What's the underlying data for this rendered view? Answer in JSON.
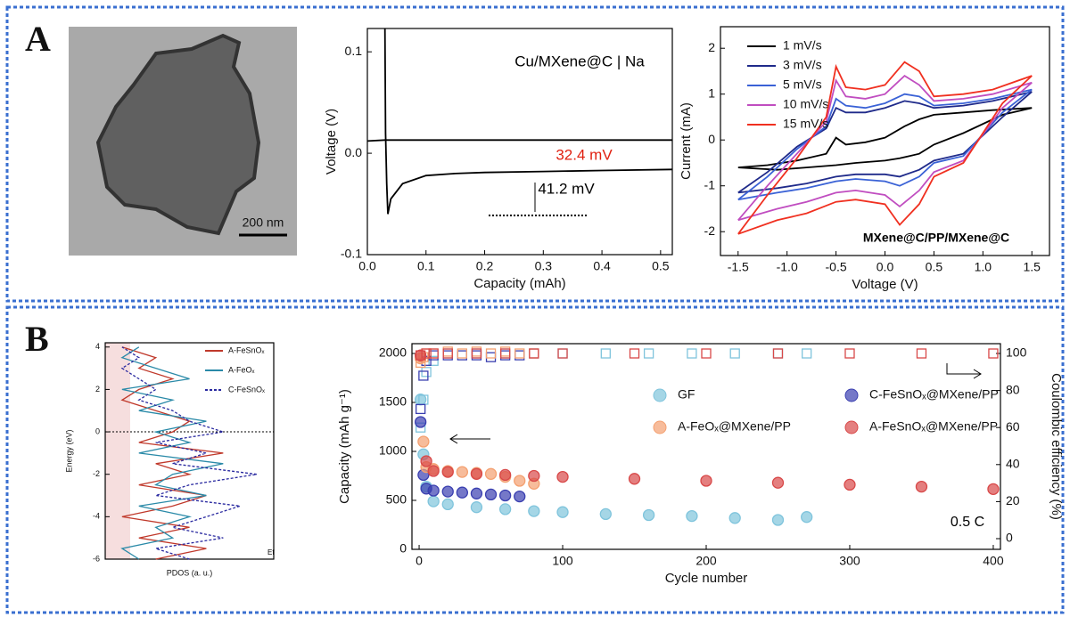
{
  "panels": [
    "A",
    "B"
  ],
  "image": {
    "scale_bar": "200 nm"
  },
  "chart_data": [
    {
      "type": "line",
      "xlabel": "Capacity (mAh)",
      "ylabel": "Voltage (V)",
      "annotations": [
        "Cu/MXene@C | Na",
        "32.4 mV",
        "41.2 mV"
      ],
      "xlim": [
        0,
        0.52
      ],
      "ylim": [
        -0.1,
        0.123
      ],
      "xticks": [
        {
          "value": 0,
          "label": "0.0"
        },
        0.1,
        0.2,
        0.3,
        0.4,
        0.5
      ],
      "yticks": [
        -0.1,
        {
          "value": 0,
          "label": "0.0"
        },
        0.1
      ],
      "series": [
        {
          "color": "#000000",
          "x": [
            0.03,
            0.031,
            0.033,
            0.035,
            0.04,
            0.06,
            0.1,
            0.15,
            0.2,
            0.3,
            0.4,
            0.52
          ],
          "values": [
            0.123,
            0.02,
            -0.03,
            -0.06,
            -0.045,
            -0.03,
            -0.022,
            -0.02,
            -0.019,
            -0.018,
            -0.017,
            -0.016
          ]
        },
        {
          "color": "#000000",
          "x": [
            0,
            0.03,
            0.1,
            0.2,
            0.3,
            0.4,
            0.52
          ],
          "values": [
            0.012,
            0.013,
            0.013,
            0.013,
            0.013,
            0.013,
            0.013
          ]
        }
      ]
    },
    {
      "type": "line",
      "xlabel": "Voltage (V)",
      "ylabel": "Current (mA)",
      "annotations": [
        "MXene@C/PP/MXene@C"
      ],
      "xlim": [
        -1.68,
        1.68
      ],
      "ylim": [
        -2.52,
        2.47
      ],
      "xticks": [
        -1.5,
        {
          "value": -1,
          "label": "-1.0"
        },
        -0.5,
        {
          "value": 0,
          "label": "0.0"
        },
        0.5,
        {
          "value": 1,
          "label": "1.0"
        },
        1.5
      ],
      "yticks": [
        -2,
        -1,
        0,
        1,
        2
      ],
      "x": [
        -1.5,
        -1.2,
        -0.9,
        -0.6,
        -0.5,
        -0.4,
        -0.2,
        0,
        0.2,
        0.35,
        0.5,
        0.8,
        1.1,
        1.5,
        1.2,
        0.8,
        0.5,
        0.35,
        0.15,
        0,
        -0.3,
        -0.5,
        -0.8,
        -1.1,
        -1.5
      ],
      "series": [
        {
          "name": "1 mV/s",
          "color": "#000000",
          "values": [
            -0.6,
            -0.55,
            -0.45,
            -0.3,
            0.05,
            -0.1,
            -0.05,
            0.05,
            0.3,
            0.45,
            0.55,
            0.6,
            0.65,
            0.7,
            0.55,
            0.15,
            -0.1,
            -0.3,
            -0.4,
            -0.45,
            -0.5,
            -0.55,
            -0.6,
            -0.65,
            -0.6
          ]
        },
        {
          "name": "3 mV/s",
          "color": "#1f2a8a",
          "values": [
            -1.15,
            -0.7,
            -0.15,
            0.25,
            0.7,
            0.6,
            0.6,
            0.7,
            0.85,
            0.8,
            0.7,
            0.75,
            0.85,
            1.05,
            0.5,
            -0.3,
            -0.45,
            -0.65,
            -0.8,
            -0.75,
            -0.75,
            -0.8,
            -0.95,
            -1.05,
            -1.15
          ]
        },
        {
          "name": "5 mV/s",
          "color": "#3a62d6",
          "values": [
            -1.3,
            -0.8,
            -0.2,
            0.3,
            0.9,
            0.75,
            0.7,
            0.8,
            1.0,
            0.95,
            0.75,
            0.8,
            0.9,
            1.1,
            0.6,
            -0.35,
            -0.5,
            -0.8,
            -1.0,
            -0.9,
            -0.85,
            -0.9,
            -1.05,
            -1.15,
            -1.3
          ]
        },
        {
          "name": "10 mV/s",
          "color": "#c04dc0",
          "values": [
            -1.75,
            -1.0,
            -0.3,
            0.4,
            1.3,
            0.95,
            0.9,
            1.0,
            1.4,
            1.2,
            0.85,
            0.9,
            1.0,
            1.25,
            0.7,
            -0.45,
            -0.7,
            -1.1,
            -1.45,
            -1.2,
            -1.1,
            -1.15,
            -1.35,
            -1.5,
            -1.75
          ]
        },
        {
          "name": "15 mV/s",
          "color": "#f03020",
          "values": [
            -2.05,
            -1.2,
            -0.4,
            0.5,
            1.6,
            1.15,
            1.1,
            1.2,
            1.7,
            1.5,
            0.95,
            1.0,
            1.1,
            1.4,
            0.8,
            -0.5,
            -0.8,
            -1.4,
            -1.85,
            -1.4,
            -1.3,
            -1.35,
            -1.6,
            -1.75,
            -2.05
          ]
        }
      ]
    },
    {
      "type": "line",
      "swap_axes": true,
      "xlabel": "PDOS (a. u.)",
      "ylabel": "Energy (eV)",
      "annotations": [
        "Ef"
      ],
      "xlim": [
        0,
        10
      ],
      "ylim": [
        -6,
        4.2
      ],
      "yticks": [
        -6,
        -4,
        -2,
        0,
        2,
        4
      ],
      "y": [
        -6,
        -5.5,
        -5,
        -4.5,
        -4,
        -3.5,
        -3,
        -2.5,
        -2,
        -1.5,
        -1,
        -0.5,
        0,
        0.5,
        1,
        1.5,
        2,
        2.5,
        3,
        3.5,
        4
      ],
      "series": [
        {
          "name": "A-FeSnOₓ",
          "color": "#c0392b",
          "values": [
            3,
            6,
            2,
            5,
            1,
            4,
            6,
            2,
            5,
            3,
            7,
            2,
            4,
            5,
            3,
            1,
            2,
            4,
            2,
            3,
            1
          ]
        },
        {
          "name": "A-FeOₓ",
          "color": "#2a8aa8",
          "values": [
            2,
            1,
            4,
            3,
            5,
            2,
            6,
            3,
            4,
            7,
            2,
            5,
            3,
            6,
            2,
            4,
            1,
            5,
            3,
            1,
            2
          ]
        },
        {
          "name": "C-FeSnOₓ",
          "color": "#2a2aa0",
          "dashed": true,
          "values": [
            5,
            3,
            7,
            4,
            6,
            8,
            3,
            5,
            9,
            4,
            6,
            3,
            7,
            5,
            4,
            2,
            3,
            2,
            1,
            2,
            1
          ]
        }
      ]
    },
    {
      "type": "scatter",
      "xlabel": "Cycle number",
      "ylabel": "Capacity (mAh g⁻¹)",
      "y2label": "Coulombic efficiency (%)",
      "annotations": [
        "0.5 C"
      ],
      "xlim": [
        -5,
        405
      ],
      "ylim": [
        0,
        2100
      ],
      "y2lim": [
        -5.77,
        105.29
      ],
      "xticks": [
        0,
        100,
        200,
        300,
        400
      ],
      "yticks": [
        0,
        500,
        1000,
        1500,
        2000
      ],
      "y2ticks": [
        0,
        20,
        40,
        60,
        80,
        100
      ],
      "series": [
        {
          "name": "GF",
          "color": "#7fc4dc",
          "x": [
            1,
            3,
            5,
            10,
            20,
            40,
            60,
            80,
            100,
            130,
            160,
            190,
            220,
            250,
            270
          ],
          "values": [
            1530,
            970,
            640,
            490,
            460,
            430,
            410,
            390,
            380,
            360,
            350,
            340,
            320,
            300,
            330
          ],
          "ce": [
            60,
            75,
            90,
            96,
            100,
            100,
            100,
            100,
            100,
            100,
            100,
            100,
            100,
            100,
            100
          ]
        },
        {
          "name": "C-FeSnOₓ@MXene/PP",
          "color": "#3a3fb0",
          "x": [
            1,
            3,
            5,
            10,
            20,
            30,
            40,
            50,
            60,
            70
          ],
          "values": [
            1300,
            760,
            620,
            600,
            590,
            580,
            570,
            560,
            550,
            540
          ],
          "ce": [
            70,
            88,
            96,
            99,
            99,
            99,
            99,
            98,
            99,
            99
          ]
        },
        {
          "name": "A-FeOₓ@MXene/PP",
          "color": "#f4a070",
          "x": [
            1,
            3,
            5,
            10,
            20,
            30,
            40,
            50,
            60,
            70,
            80
          ],
          "values": [
            1950,
            1100,
            840,
            820,
            800,
            790,
            780,
            770,
            740,
            700,
            670
          ],
          "ce": [
            95,
            98,
            100,
            100,
            101,
            100,
            101,
            100,
            101,
            100,
            100
          ]
        },
        {
          "name": "A-FeSnOₓ@MXene/PP",
          "color": "#d84848",
          "x": [
            1,
            5,
            10,
            20,
            40,
            60,
            80,
            100,
            150,
            200,
            250,
            300,
            350,
            400
          ],
          "values": [
            1980,
            900,
            800,
            790,
            770,
            760,
            750,
            740,
            720,
            700,
            680,
            660,
            640,
            615
          ],
          "ce": [
            99,
            100,
            100,
            100,
            100,
            100,
            100,
            100,
            100,
            100,
            100,
            100,
            100,
            100
          ]
        }
      ]
    }
  ]
}
